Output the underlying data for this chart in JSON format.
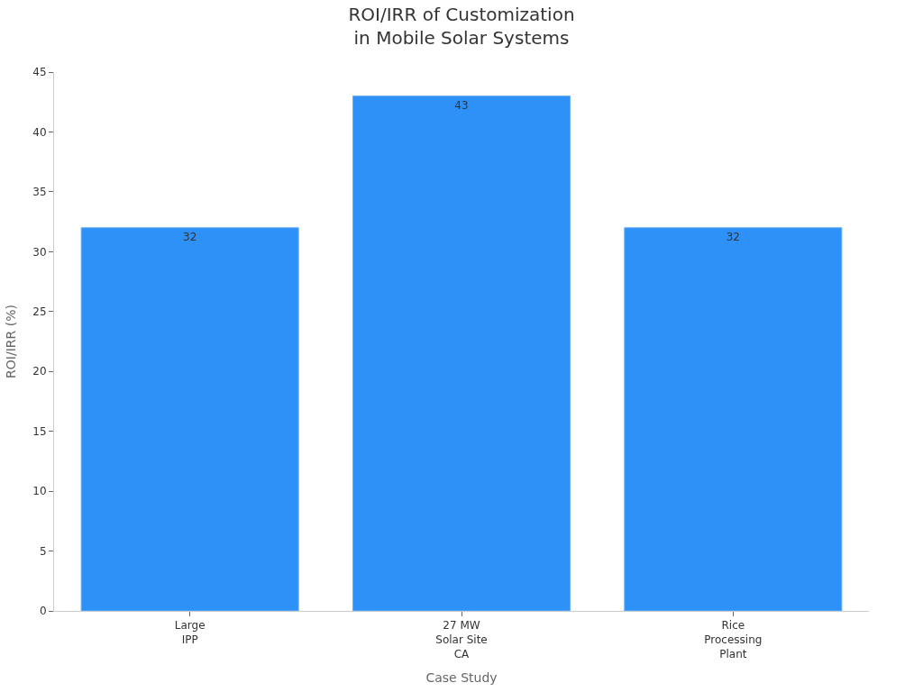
{
  "chart_data": {
    "type": "bar",
    "title": "ROI/IRR of Customization\nin Mobile Solar Systems",
    "xlabel": "Case Study",
    "ylabel": "ROI/IRR (%)",
    "categories": [
      "Large\nIPP",
      "27 MW\nSolar Site\nCA",
      "Rice\nProcessing\nPlant"
    ],
    "values": [
      32,
      43,
      32
    ],
    "color": "#2e91f8",
    "ylim": [
      0,
      45
    ],
    "yticks": [
      0,
      5,
      10,
      15,
      20,
      25,
      30,
      35,
      40,
      45
    ],
    "data_labels": true
  }
}
